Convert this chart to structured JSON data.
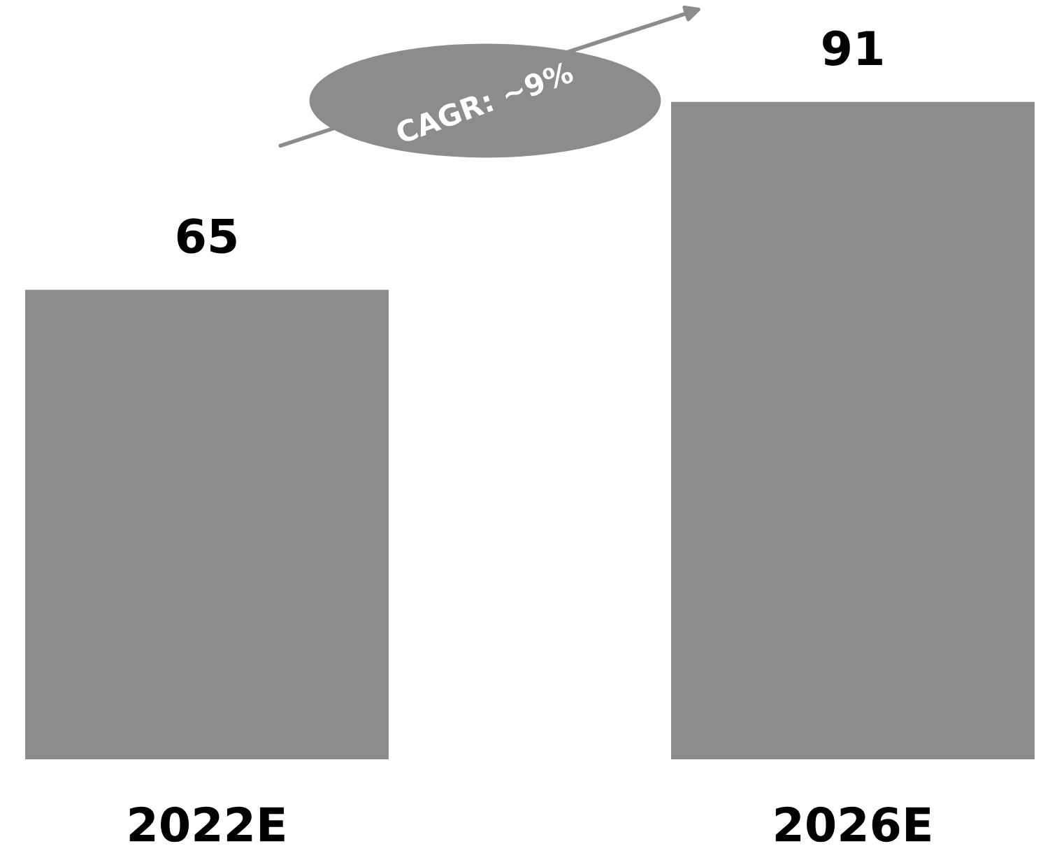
{
  "chart_data": {
    "type": "bar",
    "categories": [
      "2022E",
      "2026E"
    ],
    "values": [
      65,
      91
    ],
    "color": "#8c8c8c",
    "data_labels": true,
    "grid": false,
    "legend": false,
    "annotations": [
      "CAGR: ~9%"
    ]
  }
}
